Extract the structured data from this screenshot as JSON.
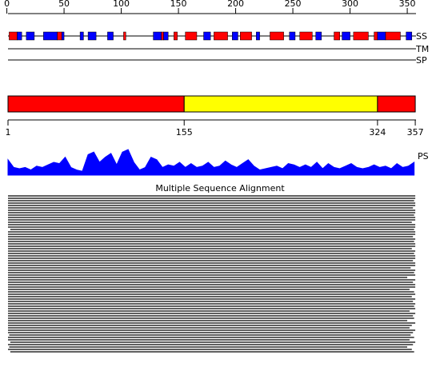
{
  "ruler": {
    "ticks": [
      0,
      50,
      100,
      150,
      200,
      250,
      300,
      350
    ]
  },
  "tracks": {
    "ss_label": "SS",
    "tm_label": "TM",
    "sp_label": "SP",
    "ps_label": "PS"
  },
  "ss": {
    "helix_color": "#ff0000",
    "strand_color": "#0000ff",
    "helix": [
      [
        2,
        9
      ],
      [
        44,
        48
      ],
      [
        102,
        104
      ],
      [
        135,
        137
      ],
      [
        146,
        149
      ],
      [
        156,
        166
      ],
      [
        181,
        193
      ],
      [
        204,
        214
      ],
      [
        230,
        242
      ],
      [
        256,
        267
      ],
      [
        286,
        291
      ],
      [
        303,
        316
      ],
      [
        321,
        324
      ],
      [
        331,
        344
      ]
    ],
    "strand": [
      [
        9,
        13
      ],
      [
        17,
        24
      ],
      [
        32,
        44
      ],
      [
        48,
        50
      ],
      [
        64,
        67
      ],
      [
        71,
        78
      ],
      [
        88,
        93
      ],
      [
        128,
        135
      ],
      [
        137,
        141
      ],
      [
        172,
        178
      ],
      [
        197,
        202
      ],
      [
        218,
        221
      ],
      [
        247,
        252
      ],
      [
        270,
        275
      ],
      [
        293,
        300
      ],
      [
        324,
        331
      ],
      [
        349,
        354
      ]
    ]
  },
  "domains": {
    "items": [
      {
        "start": 1,
        "end": 155,
        "color": "#ff0000"
      },
      {
        "start": 155,
        "end": 324,
        "color": "#ffff00"
      },
      {
        "start": 324,
        "end": 357,
        "color": "#ff0000"
      }
    ],
    "ticks": [
      1,
      155,
      324,
      357
    ]
  },
  "ps": {
    "color": "#0000ff",
    "step": 5,
    "values": [
      0.6,
      0.3,
      0.25,
      0.3,
      0.2,
      0.35,
      0.3,
      0.4,
      0.5,
      0.45,
      0.7,
      0.3,
      0.2,
      0.15,
      0.8,
      0.9,
      0.5,
      0.7,
      0.85,
      0.4,
      0.9,
      1.0,
      0.5,
      0.2,
      0.3,
      0.7,
      0.6,
      0.3,
      0.4,
      0.35,
      0.5,
      0.3,
      0.45,
      0.3,
      0.35,
      0.5,
      0.3,
      0.35,
      0.55,
      0.4,
      0.3,
      0.45,
      0.6,
      0.35,
      0.2,
      0.25,
      0.3,
      0.35,
      0.25,
      0.45,
      0.4,
      0.3,
      0.4,
      0.3,
      0.5,
      0.25,
      0.45,
      0.3,
      0.25,
      0.35,
      0.45,
      0.3,
      0.25,
      0.3,
      0.4,
      0.3,
      0.35,
      0.25,
      0.45,
      0.3,
      0.35,
      0.5
    ]
  },
  "alignment": {
    "title": "Multiple Sequence Alignment",
    "rows": [
      [
        1,
        357
      ],
      [
        1,
        357
      ],
      [
        1,
        356
      ],
      [
        1,
        357
      ],
      [
        1,
        357
      ],
      [
        1,
        355
      ],
      [
        1,
        357
      ],
      [
        1,
        357
      ],
      [
        1,
        356
      ],
      [
        1,
        357
      ],
      [
        1,
        357
      ],
      [
        1,
        354
      ],
      [
        1,
        357
      ],
      [
        1,
        357
      ],
      [
        3,
        356
      ],
      [
        1,
        357
      ],
      [
        1,
        357
      ],
      [
        1,
        355
      ],
      [
        1,
        357
      ],
      [
        1,
        356
      ],
      [
        1,
        357
      ],
      [
        1,
        357
      ],
      [
        1,
        354
      ],
      [
        1,
        357
      ],
      [
        1,
        356
      ],
      [
        1,
        357
      ],
      [
        1,
        357
      ],
      [
        1,
        355
      ],
      [
        1,
        357
      ],
      [
        1,
        357
      ],
      [
        1,
        353
      ],
      [
        1,
        357
      ],
      [
        1,
        356
      ],
      [
        1,
        357
      ],
      [
        1,
        350
      ],
      [
        1,
        357
      ],
      [
        1,
        355
      ],
      [
        1,
        357
      ],
      [
        1,
        357
      ],
      [
        1,
        352
      ],
      [
        1,
        356
      ],
      [
        1,
        357
      ],
      [
        1,
        354
      ],
      [
        1,
        357
      ],
      [
        1,
        355
      ],
      [
        1,
        357
      ],
      [
        1,
        356
      ],
      [
        1,
        357
      ],
      [
        1,
        352
      ],
      [
        1,
        357
      ],
      [
        1,
        355
      ],
      [
        1,
        356
      ],
      [
        1,
        350
      ],
      [
        1,
        357
      ],
      [
        1,
        354
      ],
      [
        1,
        352
      ],
      [
        1,
        357
      ],
      [
        1,
        355
      ],
      [
        2,
        353
      ],
      [
        1,
        356
      ],
      [
        1,
        352
      ],
      [
        3,
        357
      ],
      [
        1,
        355
      ],
      [
        2,
        350
      ],
      [
        1,
        354
      ],
      [
        3,
        356
      ]
    ]
  }
}
